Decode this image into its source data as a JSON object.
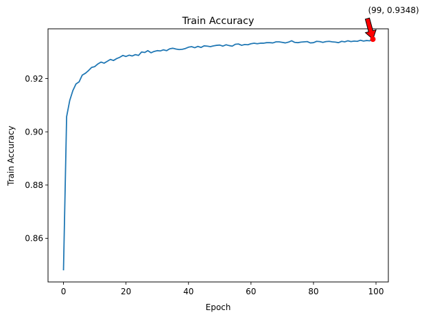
{
  "chart_data": {
    "type": "line",
    "title": "Train Accuracy",
    "xlabel": "Epoch",
    "ylabel": "Train Accuracy",
    "xlim": [
      -4.95,
      103.95
    ],
    "ylim": [
      0.8436,
      0.9387
    ],
    "xticks": [
      0,
      20,
      40,
      60,
      80,
      100
    ],
    "xtick_labels": [
      "0",
      "20",
      "40",
      "60",
      "80",
      "100"
    ],
    "yticks": [
      0.86,
      0.88,
      0.9,
      0.92
    ],
    "ytick_labels": [
      "0.86",
      "0.88",
      "0.90",
      "0.92"
    ],
    "grid": false,
    "series": [
      {
        "color": "#1f77b4",
        "x": [
          0,
          1,
          2,
          3,
          4,
          5,
          6,
          7,
          8,
          9,
          10,
          11,
          12,
          13,
          14,
          15,
          16,
          17,
          18,
          19,
          20,
          21,
          22,
          23,
          24,
          25,
          26,
          27,
          28,
          29,
          30,
          31,
          32,
          33,
          34,
          35,
          36,
          37,
          38,
          39,
          40,
          41,
          42,
          43,
          44,
          45,
          46,
          47,
          48,
          49,
          50,
          51,
          52,
          53,
          54,
          55,
          56,
          57,
          58,
          59,
          60,
          61,
          62,
          63,
          64,
          65,
          66,
          67,
          68,
          69,
          70,
          71,
          72,
          73,
          74,
          75,
          76,
          77,
          78,
          79,
          80,
          81,
          82,
          83,
          84,
          85,
          86,
          87,
          88,
          89,
          90,
          91,
          92,
          93,
          94,
          95,
          96,
          97,
          98,
          99
        ],
        "values": [
          0.8482,
          0.9057,
          0.9118,
          0.9155,
          0.918,
          0.9188,
          0.9213,
          0.922,
          0.923,
          0.9242,
          0.9245,
          0.9255,
          0.9262,
          0.9258,
          0.9265,
          0.9272,
          0.9268,
          0.9275,
          0.928,
          0.9287,
          0.9283,
          0.9288,
          0.9285,
          0.929,
          0.9287,
          0.93,
          0.9298,
          0.9305,
          0.9297,
          0.9302,
          0.9305,
          0.9304,
          0.9308,
          0.9305,
          0.9312,
          0.9314,
          0.9311,
          0.9309,
          0.931,
          0.9313,
          0.9318,
          0.932,
          0.9316,
          0.9321,
          0.9317,
          0.9323,
          0.9322,
          0.932,
          0.9323,
          0.9325,
          0.9326,
          0.9322,
          0.9327,
          0.9324,
          0.9322,
          0.9329,
          0.933,
          0.9325,
          0.9328,
          0.9327,
          0.9331,
          0.9333,
          0.9331,
          0.9333,
          0.9333,
          0.9335,
          0.9335,
          0.9334,
          0.9338,
          0.9338,
          0.9336,
          0.9334,
          0.9337,
          0.9342,
          0.9336,
          0.9335,
          0.9337,
          0.9338,
          0.9339,
          0.9334,
          0.9335,
          0.934,
          0.9339,
          0.9336,
          0.9339,
          0.934,
          0.9338,
          0.9337,
          0.9335,
          0.934,
          0.9338,
          0.9342,
          0.9339,
          0.9341,
          0.934,
          0.9344,
          0.9341,
          0.9343,
          0.9342,
          0.9348
        ]
      }
    ],
    "annotation": {
      "text": "(99, 0.9348)",
      "x": 99,
      "y": 0.9348,
      "marker_color": "#ff0000",
      "arrow_color": "#ff0000"
    }
  }
}
